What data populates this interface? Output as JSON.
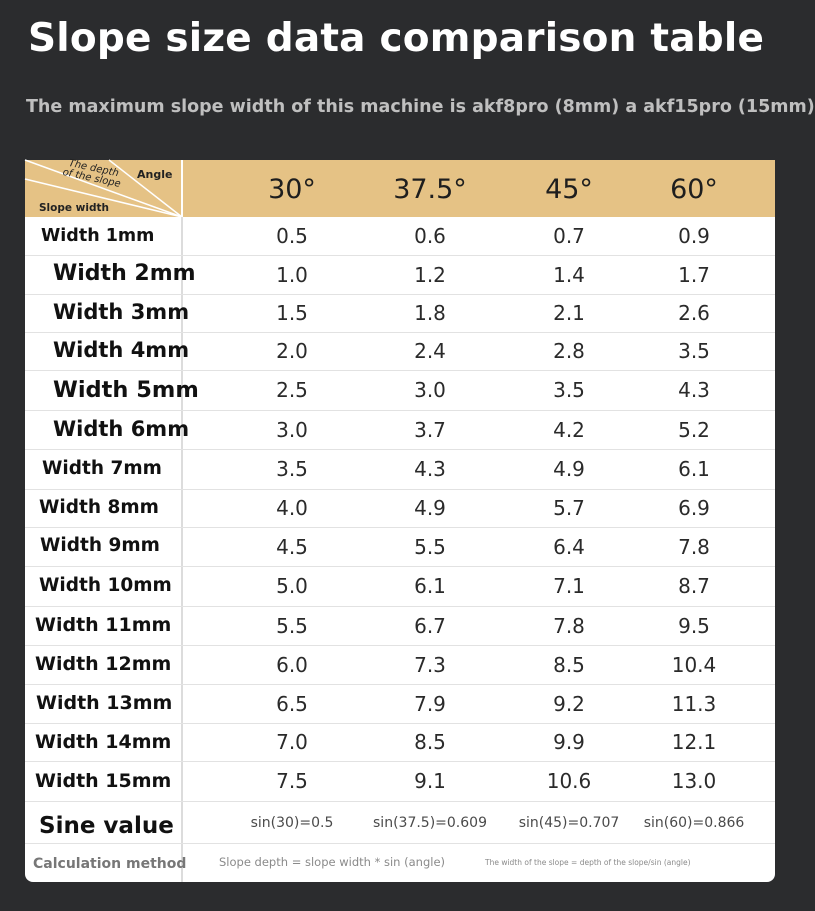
{
  "title": "Slope size data comparison table",
  "subtitle": "The maximum slope width of this machine is akf8pro (8mm) a akf15pro (15mm)",
  "corner": {
    "angle": "Angle",
    "depth_line1": "The depth",
    "depth_line2": "of the slope",
    "slope_width": "Slope width"
  },
  "angles": [
    "30°",
    "37.5°",
    "45°",
    "60°"
  ],
  "rows": [
    {
      "label": "Width 1mm",
      "values": [
        "0.5",
        "0.6",
        "0.7",
        "0.9"
      ]
    },
    {
      "label": "Width 2mm",
      "values": [
        "1.0",
        "1.2",
        "1.4",
        "1.7"
      ]
    },
    {
      "label": "Width 3mm",
      "values": [
        "1.5",
        "1.8",
        "2.1",
        "2.6"
      ]
    },
    {
      "label": "Width 4mm",
      "values": [
        "2.0",
        "2.4",
        "2.8",
        "3.5"
      ]
    },
    {
      "label": "Width 5mm",
      "values": [
        "2.5",
        "3.0",
        "3.5",
        "4.3"
      ]
    },
    {
      "label": "Width 6mm",
      "values": [
        "3.0",
        "3.7",
        "4.2",
        "5.2"
      ]
    },
    {
      "label": "Width 7mm",
      "values": [
        "3.5",
        "4.3",
        "4.9",
        "6.1"
      ]
    },
    {
      "label": "Width 8mm",
      "values": [
        "4.0",
        "4.9",
        "5.7",
        "6.9"
      ]
    },
    {
      "label": "Width 9mm",
      "values": [
        "4.5",
        "5.5",
        "6.4",
        "7.8"
      ]
    },
    {
      "label": "Width 10mm",
      "values": [
        "5.0",
        "6.1",
        "7.1",
        "8.7"
      ]
    },
    {
      "label": "Width 11mm",
      "values": [
        "5.5",
        "6.7",
        "7.8",
        "9.5"
      ]
    },
    {
      "label": "Width 12mm",
      "values": [
        "6.0",
        "7.3",
        "8.5",
        "10.4"
      ]
    },
    {
      "label": "Width 13mm",
      "values": [
        "6.5",
        "7.9",
        "9.2",
        "11.3"
      ]
    },
    {
      "label": "Width 14mm",
      "values": [
        "7.0",
        "8.5",
        "9.9",
        "12.1"
      ]
    },
    {
      "label": "Width 15mm",
      "values": [
        "7.5",
        "9.1",
        "10.6",
        "13.0"
      ]
    }
  ],
  "sine": {
    "label": "Sine value",
    "values": [
      "sin(30)=0.5",
      "sin(37.5)=0.609",
      "sin(45)=0.707",
      "sin(60)=0.866"
    ]
  },
  "calc": {
    "label": "Calculation method",
    "formula1": "Slope depth = slope width * sin (angle)",
    "formula2": "The width of the slope = depth of the slope/sin (angle)"
  }
}
